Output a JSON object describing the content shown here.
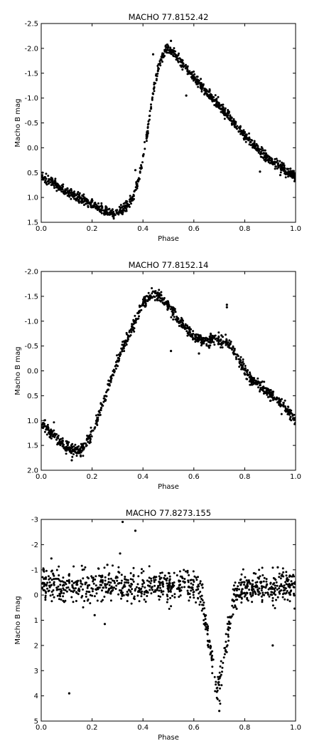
{
  "chart_data": [
    {
      "type": "scatter",
      "title": "MACHO 77.8152.42",
      "xlabel": "Phase",
      "ylabel": "Macho B mag",
      "xlim": [
        0.0,
        1.0
      ],
      "ylim": [
        -2.5,
        1.5
      ],
      "y_inverted": true,
      "grid": false,
      "legend": "none",
      "marker_color": "#000000",
      "x_ticks": [
        "0.0",
        "0.2",
        "0.4",
        "0.6",
        "0.8",
        "1.0"
      ],
      "x_tick_values": [
        0.0,
        0.2,
        0.4,
        0.6,
        0.8,
        1.0
      ],
      "y_ticks": [
        "-2.5",
        "-2.0",
        "-1.5",
        "-1.0",
        "-0.5",
        "0.0",
        "0.5",
        "1.0",
        "1.5"
      ],
      "y_tick_values": [
        -2.5,
        -2.0,
        -1.5,
        -1.0,
        -0.5,
        0.0,
        0.5,
        1.0,
        1.5
      ],
      "curve": [
        [
          0.0,
          0.58
        ],
        [
          0.05,
          0.72
        ],
        [
          0.1,
          0.88
        ],
        [
          0.15,
          1.02
        ],
        [
          0.2,
          1.15
        ],
        [
          0.25,
          1.27
        ],
        [
          0.28,
          1.32
        ],
        [
          0.3,
          1.3
        ],
        [
          0.33,
          1.2
        ],
        [
          0.36,
          1.0
        ],
        [
          0.38,
          0.7
        ],
        [
          0.4,
          0.2
        ],
        [
          0.42,
          -0.4
        ],
        [
          0.44,
          -1.1
        ],
        [
          0.46,
          -1.6
        ],
        [
          0.48,
          -1.9
        ],
        [
          0.5,
          -2.02
        ],
        [
          0.52,
          -1.9
        ],
        [
          0.55,
          -1.72
        ],
        [
          0.6,
          -1.42
        ],
        [
          0.65,
          -1.12
        ],
        [
          0.7,
          -0.85
        ],
        [
          0.75,
          -0.55
        ],
        [
          0.8,
          -0.25
        ],
        [
          0.85,
          0.02
        ],
        [
          0.9,
          0.25
        ],
        [
          0.95,
          0.42
        ],
        [
          1.0,
          0.58
        ]
      ],
      "scatter_sd": 0.05,
      "n_points": 1150,
      "outliers": [
        [
          0.37,
          0.45
        ],
        [
          0.51,
          -2.15
        ],
        [
          0.44,
          -1.88
        ],
        [
          0.57,
          -1.05
        ],
        [
          0.86,
          0.48
        ],
        [
          0.94,
          0.55
        ]
      ]
    },
    {
      "type": "scatter",
      "title": "MACHO 77.8152.14",
      "xlabel": "Phase",
      "ylabel": "Macho B mag",
      "xlim": [
        0.0,
        1.0
      ],
      "ylim": [
        -2.0,
        2.0
      ],
      "y_inverted": true,
      "grid": false,
      "legend": "none",
      "marker_color": "#000000",
      "x_ticks": [
        "0.0",
        "0.2",
        "0.4",
        "0.6",
        "0.8",
        "1.0"
      ],
      "x_tick_values": [
        0.0,
        0.2,
        0.4,
        0.6,
        0.8,
        1.0
      ],
      "y_ticks": [
        "-2.0",
        "-1.5",
        "-1.0",
        "-0.5",
        "0.0",
        "0.5",
        "1.0",
        "1.5",
        "2.0"
      ],
      "y_tick_values": [
        -2.0,
        -1.5,
        -1.0,
        -0.5,
        0.0,
        0.5,
        1.0,
        1.5,
        2.0
      ],
      "curve": [
        [
          0.0,
          1.05
        ],
        [
          0.05,
          1.3
        ],
        [
          0.1,
          1.55
        ],
        [
          0.13,
          1.62
        ],
        [
          0.16,
          1.58
        ],
        [
          0.2,
          1.25
        ],
        [
          0.24,
          0.7
        ],
        [
          0.28,
          0.1
        ],
        [
          0.32,
          -0.45
        ],
        [
          0.36,
          -0.9
        ],
        [
          0.4,
          -1.35
        ],
        [
          0.43,
          -1.55
        ],
        [
          0.46,
          -1.52
        ],
        [
          0.5,
          -1.3
        ],
        [
          0.55,
          -0.95
        ],
        [
          0.6,
          -0.68
        ],
        [
          0.65,
          -0.6
        ],
        [
          0.7,
          -0.65
        ],
        [
          0.74,
          -0.55
        ],
        [
          0.78,
          -0.2
        ],
        [
          0.82,
          0.15
        ],
        [
          0.87,
          0.35
        ],
        [
          0.92,
          0.55
        ],
        [
          0.96,
          0.75
        ],
        [
          1.0,
          0.98
        ]
      ],
      "scatter_sd": 0.06,
      "n_points": 1000,
      "outliers": [
        [
          0.73,
          -1.28
        ],
        [
          0.73,
          -1.33
        ],
        [
          0.51,
          -0.4
        ],
        [
          0.62,
          -0.35
        ],
        [
          0.12,
          1.8
        ]
      ]
    },
    {
      "type": "scatter",
      "title": "MACHO 77.8273.155",
      "xlabel": "Phase",
      "ylabel": "Macho B mag",
      "xlim": [
        0.0,
        1.0
      ],
      "ylim": [
        -3,
        5
      ],
      "y_inverted": true,
      "grid": false,
      "legend": "none",
      "marker_color": "#000000",
      "x_ticks": [
        "0.0",
        "0.2",
        "0.4",
        "0.6",
        "0.8",
        "1.0"
      ],
      "x_tick_values": [
        0.0,
        0.2,
        0.4,
        0.6,
        0.8,
        1.0
      ],
      "y_ticks": [
        "-3",
        "-2",
        "-1",
        "0",
        "1",
        "2",
        "3",
        "4",
        "5"
      ],
      "y_tick_values": [
        -3,
        -2,
        -1,
        0,
        1,
        2,
        3,
        4,
        5
      ],
      "curve": [
        [
          0.0,
          -0.35
        ],
        [
          0.1,
          -0.35
        ],
        [
          0.2,
          -0.35
        ],
        [
          0.3,
          -0.35
        ],
        [
          0.4,
          -0.35
        ],
        [
          0.5,
          -0.35
        ],
        [
          0.6,
          -0.35
        ],
        [
          0.62,
          -0.2
        ],
        [
          0.64,
          0.5
        ],
        [
          0.66,
          1.8
        ],
        [
          0.68,
          3.2
        ],
        [
          0.69,
          3.7
        ],
        [
          0.7,
          3.55
        ],
        [
          0.72,
          2.4
        ],
        [
          0.74,
          1.0
        ],
        [
          0.76,
          0.2
        ],
        [
          0.78,
          -0.15
        ],
        [
          0.8,
          -0.3
        ],
        [
          0.9,
          -0.35
        ],
        [
          1.0,
          -0.35
        ]
      ],
      "scatter_sd": 0.32,
      "n_points": 950,
      "outliers": [
        [
          0.32,
          -2.9
        ],
        [
          0.37,
          -2.55
        ],
        [
          0.31,
          -1.65
        ],
        [
          0.04,
          -1.45
        ],
        [
          0.11,
          3.9
        ],
        [
          0.26,
          -1.2
        ],
        [
          0.91,
          2.0
        ],
        [
          0.93,
          -1.1
        ],
        [
          0.25,
          1.15
        ],
        [
          0.21,
          0.8
        ],
        [
          0.7,
          4.6
        ]
      ]
    }
  ]
}
